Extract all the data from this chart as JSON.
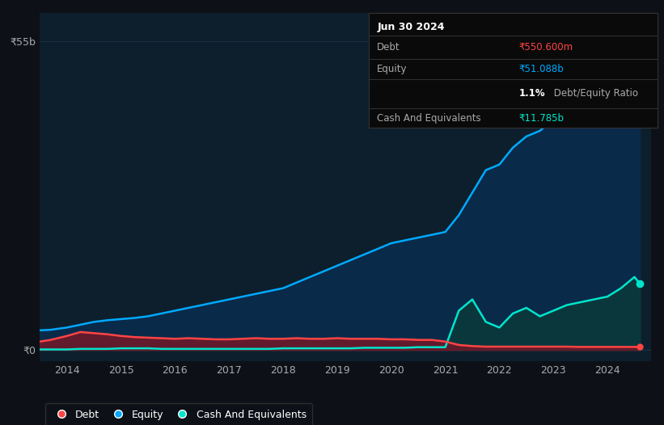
{
  "bg_color": "#0d1117",
  "plot_bg_color": "#0d1f2d",
  "grid_color": "#1e3a4a",
  "debt_color": "#ff4444",
  "equity_color": "#00aaff",
  "cash_color": "#00e5cc",
  "debt_fill_color": "#6b1a2a",
  "equity_fill_color": "#0a2a4a",
  "cash_fill_color": "#0a3a3a",
  "y_label_55b": "₹55b",
  "y_label_0": "₹0",
  "x_ticks": [
    2014,
    2015,
    2016,
    2017,
    2018,
    2019,
    2020,
    2021,
    2022,
    2023,
    2024
  ],
  "tooltip_title": "Jun 30 2024",
  "tooltip_debt_label": "Debt",
  "tooltip_debt_value": "₹550.600m",
  "tooltip_equity_label": "Equity",
  "tooltip_equity_value": "₹51.088b",
  "tooltip_ratio_bold": "1.1%",
  "tooltip_ratio_normal": " Debt/Equity Ratio",
  "tooltip_cash_label": "Cash And Equivalents",
  "tooltip_cash_value": "₹11.785b",
  "legend_labels": [
    "Debt",
    "Equity",
    "Cash And Equivalents"
  ],
  "xlim": [
    2013.5,
    2024.8
  ],
  "ylim": [
    -2,
    60
  ],
  "figsize": [
    8.21,
    5.26
  ],
  "dpi": 100,
  "equity_data_x": [
    2013.5,
    2013.7,
    2014.0,
    2014.25,
    2014.5,
    2014.75,
    2015.0,
    2015.25,
    2015.5,
    2015.75,
    2016.0,
    2016.25,
    2016.5,
    2016.75,
    2017.0,
    2017.25,
    2017.5,
    2017.75,
    2018.0,
    2018.25,
    2018.5,
    2018.75,
    2019.0,
    2019.25,
    2019.5,
    2019.75,
    2020.0,
    2020.25,
    2020.5,
    2020.75,
    2021.0,
    2021.25,
    2021.5,
    2021.75,
    2022.0,
    2022.25,
    2022.5,
    2022.75,
    2023.0,
    2023.25,
    2023.5,
    2023.75,
    2024.0,
    2024.25,
    2024.5,
    2024.6
  ],
  "equity_data_y": [
    3.5,
    3.6,
    4.0,
    4.5,
    5.0,
    5.3,
    5.5,
    5.7,
    6.0,
    6.5,
    7.0,
    7.5,
    8.0,
    8.5,
    9.0,
    9.5,
    10.0,
    10.5,
    11.0,
    12.0,
    13.0,
    14.0,
    15.0,
    16.0,
    17.0,
    18.0,
    19.0,
    19.5,
    20.0,
    20.5,
    21.0,
    24.0,
    28.0,
    32.0,
    33.0,
    36.0,
    38.0,
    39.0,
    41.0,
    43.0,
    45.0,
    47.0,
    49.0,
    51.0,
    53.0,
    51.088
  ],
  "debt_data_x": [
    2013.5,
    2013.7,
    2014.0,
    2014.25,
    2014.5,
    2014.75,
    2015.0,
    2015.25,
    2015.5,
    2015.75,
    2016.0,
    2016.25,
    2016.5,
    2016.75,
    2017.0,
    2017.25,
    2017.5,
    2017.75,
    2018.0,
    2018.25,
    2018.5,
    2018.75,
    2019.0,
    2019.25,
    2019.5,
    2019.75,
    2020.0,
    2020.25,
    2020.5,
    2020.75,
    2021.0,
    2021.25,
    2021.5,
    2021.75,
    2022.0,
    2022.25,
    2022.5,
    2022.75,
    2023.0,
    2023.25,
    2023.5,
    2023.75,
    2024.0,
    2024.25,
    2024.5,
    2024.6
  ],
  "debt_data_y": [
    1.5,
    1.8,
    2.5,
    3.2,
    3.0,
    2.8,
    2.5,
    2.3,
    2.2,
    2.1,
    2.0,
    2.1,
    2.0,
    1.9,
    1.9,
    2.0,
    2.1,
    2.0,
    2.0,
    2.1,
    2.0,
    2.0,
    2.1,
    2.0,
    2.0,
    2.0,
    1.9,
    1.9,
    1.8,
    1.8,
    1.5,
    0.9,
    0.7,
    0.6,
    0.6,
    0.6,
    0.6,
    0.6,
    0.6,
    0.6,
    0.55,
    0.55,
    0.55,
    0.55,
    0.55,
    0.5506
  ],
  "cash_data_x": [
    2013.5,
    2013.7,
    2014.0,
    2014.25,
    2014.5,
    2014.75,
    2015.0,
    2015.25,
    2015.5,
    2015.75,
    2016.0,
    2016.25,
    2016.5,
    2016.75,
    2017.0,
    2017.25,
    2017.5,
    2017.75,
    2018.0,
    2018.25,
    2018.5,
    2018.75,
    2019.0,
    2019.25,
    2019.5,
    2019.75,
    2020.0,
    2020.25,
    2020.5,
    2020.75,
    2021.0,
    2021.25,
    2021.5,
    2021.75,
    2022.0,
    2022.25,
    2022.5,
    2022.75,
    2023.0,
    2023.25,
    2023.5,
    2023.75,
    2024.0,
    2024.25,
    2024.5,
    2024.6
  ],
  "cash_data_y": [
    0.1,
    0.1,
    0.1,
    0.2,
    0.2,
    0.2,
    0.3,
    0.3,
    0.3,
    0.2,
    0.2,
    0.2,
    0.2,
    0.2,
    0.2,
    0.2,
    0.2,
    0.2,
    0.3,
    0.3,
    0.3,
    0.3,
    0.3,
    0.3,
    0.4,
    0.4,
    0.4,
    0.4,
    0.5,
    0.5,
    0.5,
    7.0,
    9.0,
    5.0,
    4.0,
    6.5,
    7.5,
    6.0,
    7.0,
    8.0,
    8.5,
    9.0,
    9.5,
    11.0,
    13.0,
    11.785
  ]
}
